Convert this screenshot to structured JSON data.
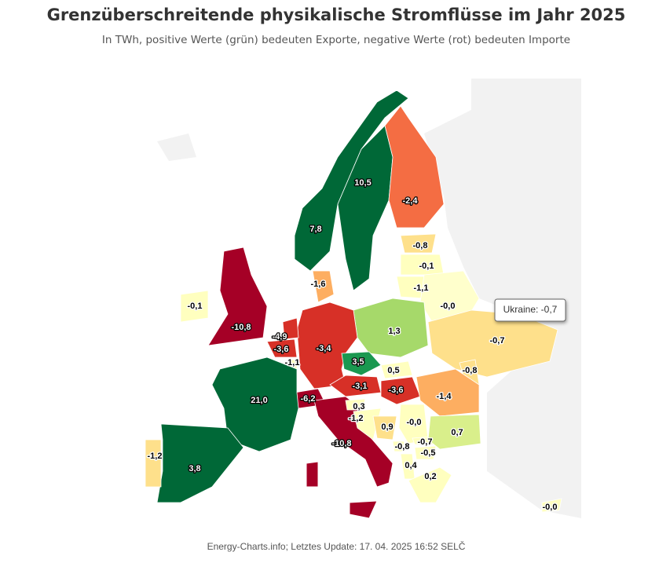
{
  "title": "Grenzüberschreitende physikalische Stromflüsse im Jahr 2025",
  "subtitle": "In TWh, positive Werte (grün) bedeuten Exporte, negative Werte (rot) bedeuten Importe",
  "regions": [
    {
      "label": "7,8",
      "color": "#006837"
    },
    {
      "label": "10,5",
      "color": "#006837"
    },
    {
      "label": "-2,4",
      "color": "#f46d43"
    },
    {
      "label": "-0,8",
      "color": "#fee08b"
    },
    {
      "label": "-0,1",
      "color": "#ffffbf"
    },
    {
      "label": "-1,1",
      "color": "#ffffbf"
    },
    {
      "label": "-0,0",
      "color": "#ffffcc"
    },
    {
      "label": "-0,7",
      "color": "#fee08b"
    },
    {
      "label": "-0,8",
      "color": "#fee08b"
    },
    {
      "label": "1,3",
      "color": "#a6d96a"
    },
    {
      "label": "-3,4",
      "color": "#d73027"
    },
    {
      "label": "-1,6",
      "color": "#fdae61"
    },
    {
      "label": "-4,9",
      "color": "#d73027"
    },
    {
      "label": "-3,6",
      "color": "#d73027"
    },
    {
      "label": "-1,1",
      "color": "#ffffbf"
    },
    {
      "label": "3,5",
      "color": "#1a9850"
    },
    {
      "label": "0,5",
      "color": "#ffffbf"
    },
    {
      "label": "-3,1",
      "color": "#d73027"
    },
    {
      "label": "-3,6",
      "color": "#d73027"
    },
    {
      "label": "-1,4",
      "color": "#fdae61"
    },
    {
      "label": "-6,2",
      "color": "#a50026"
    },
    {
      "label": "21,0",
      "color": "#006837"
    },
    {
      "label": "3,8",
      "color": "#006837"
    },
    {
      "label": "-1,2",
      "color": "#fee08b"
    },
    {
      "label": "-10,8",
      "color": "#a50026"
    },
    {
      "label": "-10,8",
      "color": "#a50026"
    },
    {
      "label": "-0,1",
      "color": "#ffffbf"
    },
    {
      "label": "0,3",
      "color": "#ffffbf"
    },
    {
      "label": "-1,2",
      "color": "#ffffbf"
    },
    {
      "label": "0,9",
      "color": "#fee08b"
    },
    {
      "label": "-0,0",
      "color": "#ffffbf"
    },
    {
      "label": "-0,8",
      "color": "#ffffbf"
    },
    {
      "label": "-0,7",
      "color": "#ffffbf"
    },
    {
      "label": "-0,5",
      "color": "#ffffbf"
    },
    {
      "label": "0,4",
      "color": "#ffffbf"
    },
    {
      "label": "0,2",
      "color": "#ffffbf"
    },
    {
      "label": "0,7",
      "color": "#d9ef8b"
    },
    {
      "label": "-0,0",
      "color": "#ffffbf"
    }
  ],
  "tooltip": "Ukraine: -0,7",
  "footer": "Energy-Charts.info; Letztes Update: 17. 04. 2025 16:52 SELČ"
}
